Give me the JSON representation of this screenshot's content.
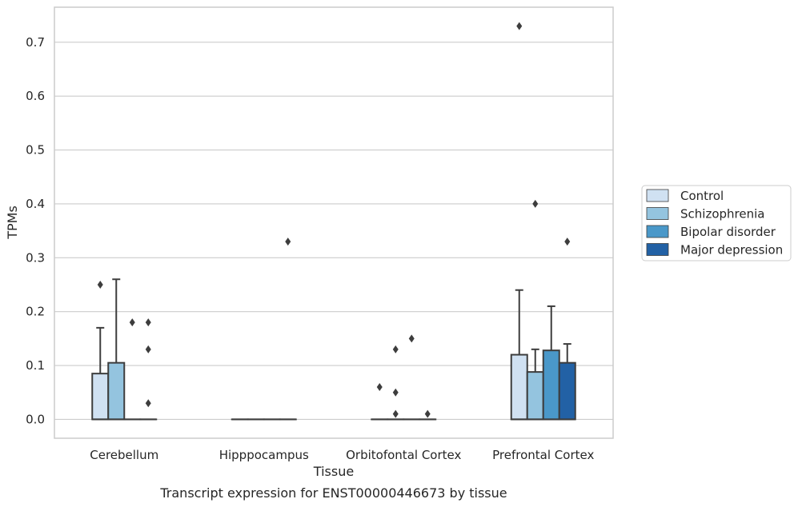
{
  "caption": "Transcript expression for ENST00000446673 by tissue",
  "colors": {
    "Control": "#d0e1f2",
    "Schizophrenia": "#94c4df",
    "Bipolar disorder": "#4a98c9",
    "Major depression": "#2261a5"
  },
  "chart_data": {
    "type": "box",
    "xlabel": "Tissue",
    "ylabel": "TPMs",
    "ylim": [
      -0.035,
      0.765
    ],
    "yticks": [
      0.0,
      0.1,
      0.2,
      0.3,
      0.4,
      0.5,
      0.6,
      0.7
    ],
    "ytick_labels": [
      "0.0",
      "0.1",
      "0.2",
      "0.3",
      "0.4",
      "0.5",
      "0.6",
      "0.7"
    ],
    "grid": true,
    "legend_position": "right",
    "categories": [
      "Cerebellum",
      "Hipppocampus",
      "Orbitofontal Cortex",
      "Prefrontal Cortex"
    ],
    "series": [
      {
        "name": "Control",
        "boxes": [
          {
            "q1": 0.0,
            "median": 0.0,
            "q3": 0.085,
            "whisker_low": 0.0,
            "whisker_high": 0.17,
            "outliers": [
              0.25
            ]
          },
          {
            "q1": 0.0,
            "median": 0.0,
            "q3": 0.0,
            "whisker_low": 0.0,
            "whisker_high": 0.0,
            "outliers": []
          },
          {
            "q1": 0.0,
            "median": 0.0,
            "q3": 0.0,
            "whisker_low": 0.0,
            "whisker_high": 0.0,
            "outliers": [
              0.06
            ]
          },
          {
            "q1": 0.0,
            "median": 0.0,
            "q3": 0.12,
            "whisker_low": 0.0,
            "whisker_high": 0.24,
            "outliers": [
              0.73
            ]
          }
        ]
      },
      {
        "name": "Schizophrenia",
        "boxes": [
          {
            "q1": 0.0,
            "median": 0.0,
            "q3": 0.105,
            "whisker_low": 0.0,
            "whisker_high": 0.26,
            "outliers": []
          },
          {
            "q1": 0.0,
            "median": 0.0,
            "q3": 0.0,
            "whisker_low": 0.0,
            "whisker_high": 0.0,
            "outliers": []
          },
          {
            "q1": 0.0,
            "median": 0.0,
            "q3": 0.0,
            "whisker_low": 0.0,
            "whisker_high": 0.0,
            "outliers": [
              0.13,
              0.05,
              0.01
            ]
          },
          {
            "q1": 0.0,
            "median": 0.0,
            "q3": 0.088,
            "whisker_low": 0.0,
            "whisker_high": 0.13,
            "outliers": [
              0.4
            ]
          }
        ]
      },
      {
        "name": "Bipolar disorder",
        "boxes": [
          {
            "q1": 0.0,
            "median": 0.0,
            "q3": 0.0,
            "whisker_low": 0.0,
            "whisker_high": 0.0,
            "outliers": [
              0.18
            ]
          },
          {
            "q1": 0.0,
            "median": 0.0,
            "q3": 0.0,
            "whisker_low": 0.0,
            "whisker_high": 0.0,
            "outliers": []
          },
          {
            "q1": 0.0,
            "median": 0.0,
            "q3": 0.0,
            "whisker_low": 0.0,
            "whisker_high": 0.0,
            "outliers": [
              0.15
            ]
          },
          {
            "q1": 0.0,
            "median": 0.0,
            "q3": 0.128,
            "whisker_low": 0.0,
            "whisker_high": 0.21,
            "outliers": []
          }
        ]
      },
      {
        "name": "Major depression",
        "boxes": [
          {
            "q1": 0.0,
            "median": 0.0,
            "q3": 0.0,
            "whisker_low": 0.0,
            "whisker_high": 0.0,
            "outliers": [
              0.18,
              0.13,
              0.03
            ]
          },
          {
            "q1": 0.0,
            "median": 0.0,
            "q3": 0.0,
            "whisker_low": 0.0,
            "whisker_high": 0.0,
            "outliers": [
              0.33
            ]
          },
          {
            "q1": 0.0,
            "median": 0.0,
            "q3": 0.0,
            "whisker_low": 0.0,
            "whisker_high": 0.0,
            "outliers": [
              0.01
            ]
          },
          {
            "q1": 0.0,
            "median": 0.0,
            "q3": 0.105,
            "whisker_low": 0.0,
            "whisker_high": 0.14,
            "outliers": [
              0.33
            ]
          }
        ]
      }
    ]
  }
}
